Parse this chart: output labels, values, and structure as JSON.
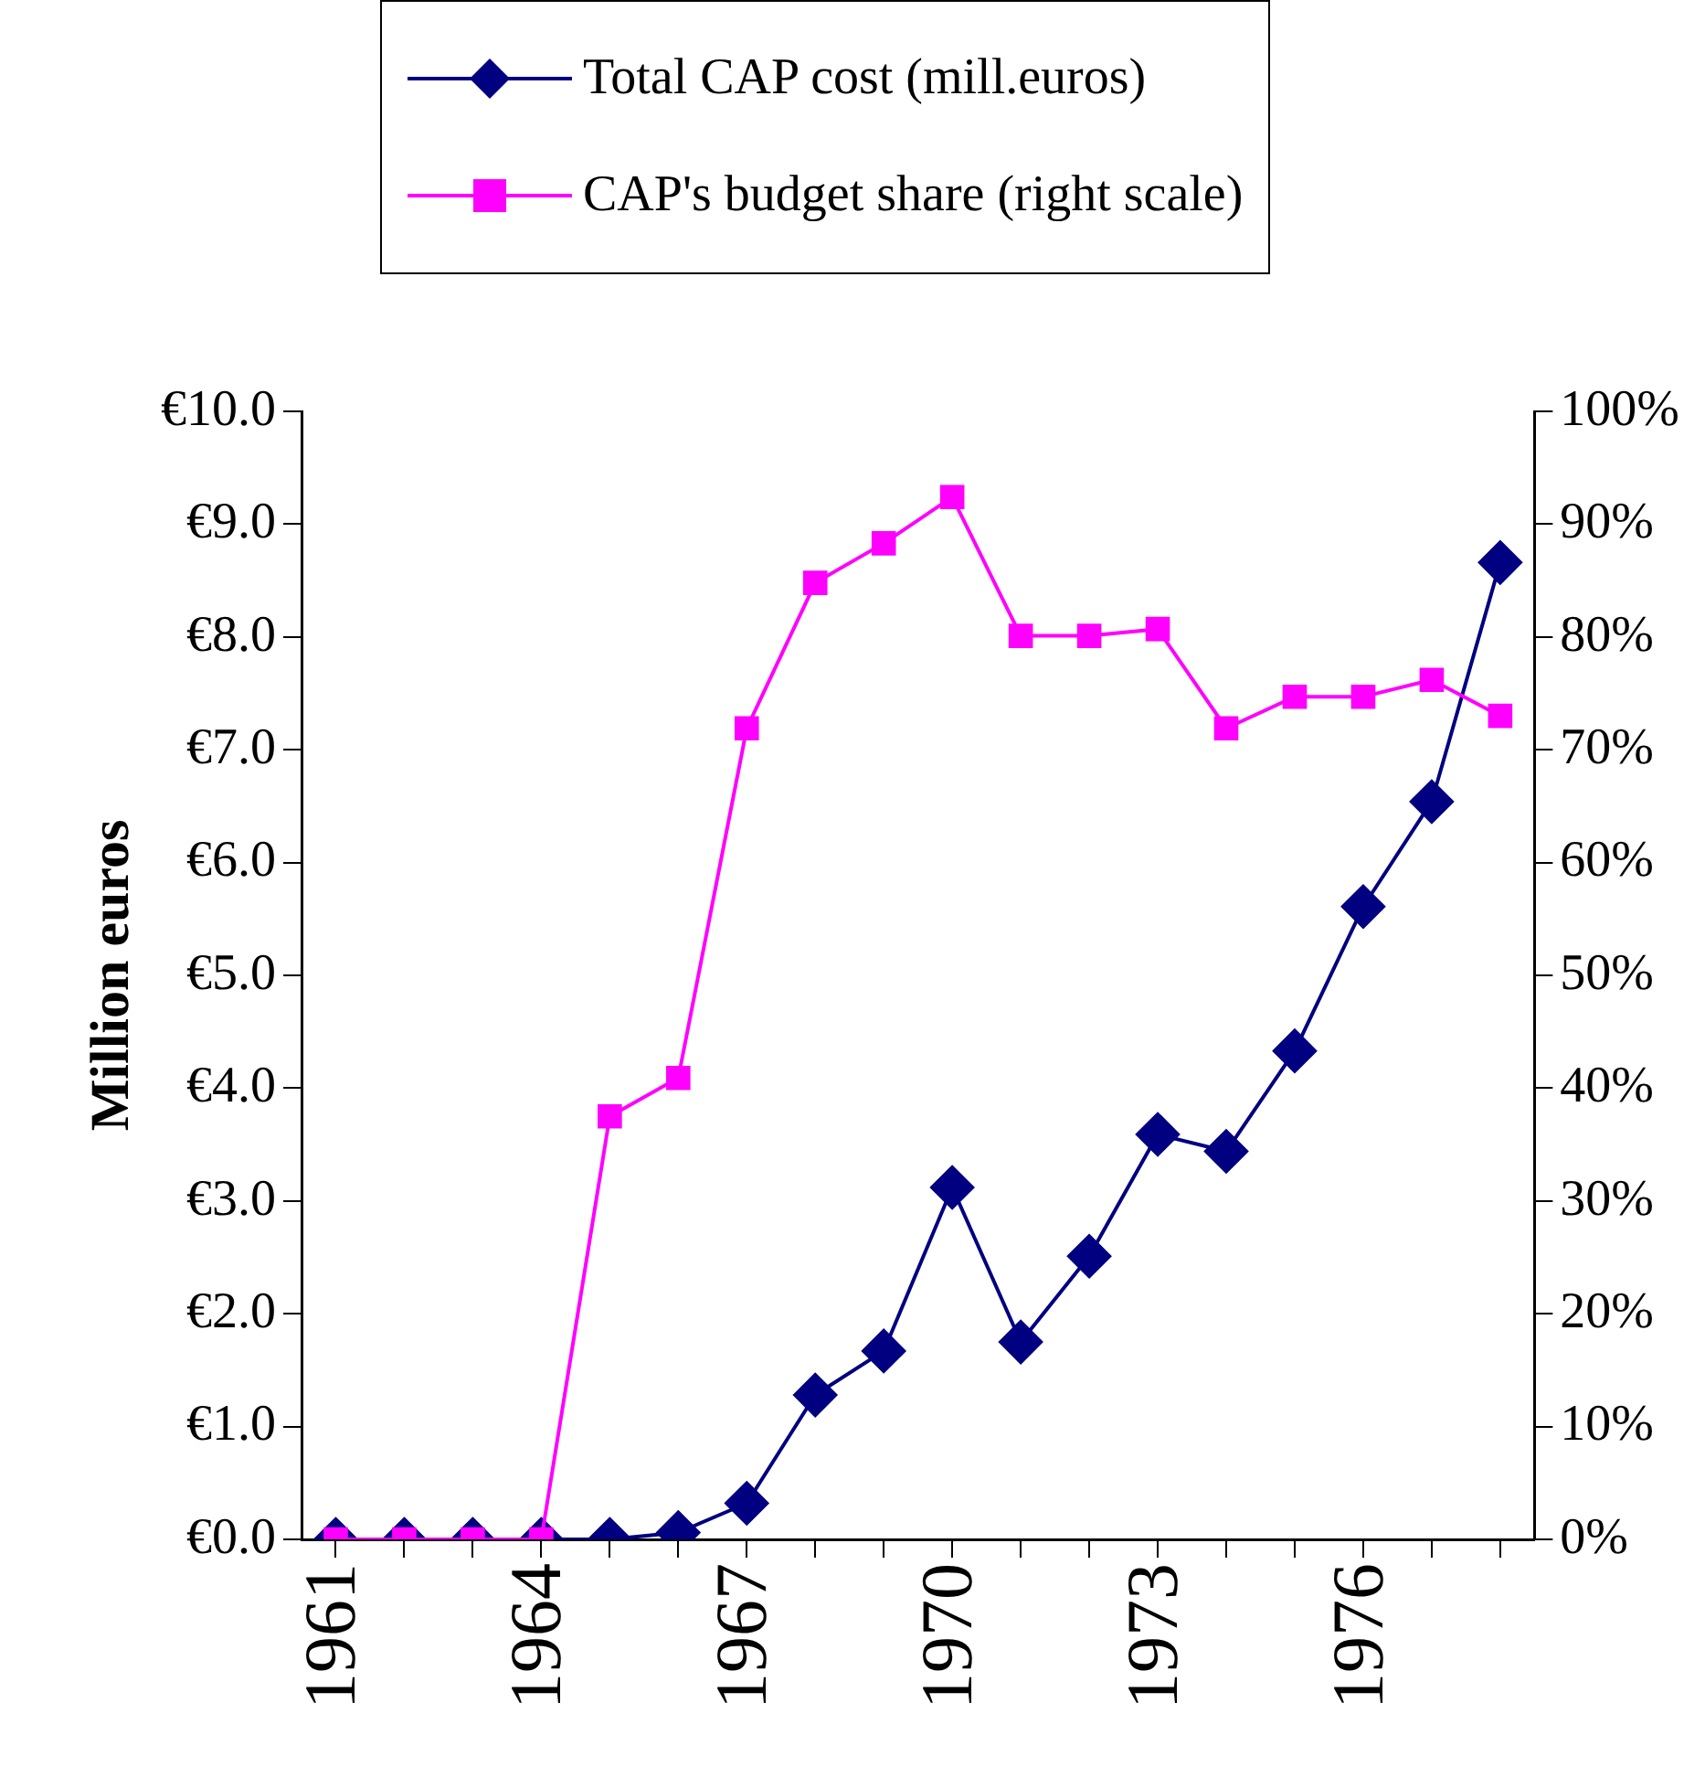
{
  "chart_data": {
    "type": "line",
    "ylabel": "Million euros",
    "legend": "top",
    "categories": [
      "1961",
      null,
      null,
      "1964",
      null,
      null,
      "1967",
      null,
      null,
      "1970",
      null,
      null,
      "1973",
      null,
      null,
      "1976",
      null,
      null
    ],
    "series": [
      {
        "name": "Total CAP cost (mill.euros)",
        "color": "#000080",
        "marker": "diamond",
        "values": [
          0,
          0,
          0,
          0,
          0,
          0.06,
          0.32,
          1.28,
          1.67,
          3.12,
          1.75,
          2.51,
          3.59,
          3.44,
          4.33,
          5.61,
          6.54,
          8.66
        ]
      },
      {
        "name": "CAP's budget share (right scale)",
        "color": "#ff00ff",
        "marker": "square",
        "axis": "y2",
        "values": [
          0,
          0,
          0,
          0,
          37.5,
          40.9,
          71.9,
          84.8,
          88.3,
          92.4,
          80.1,
          80.1,
          80.7,
          71.9,
          74.7,
          74.7,
          76.2,
          73.0
        ]
      }
    ],
    "ylim": [
      0,
      10
    ],
    "yticks": [
      {
        "value": 0,
        "label": "€0.0"
      },
      {
        "value": 1,
        "label": "€1.0"
      },
      {
        "value": 2,
        "label": "€2.0"
      },
      {
        "value": 3,
        "label": "€3.0"
      },
      {
        "value": 4,
        "label": "€4.0"
      },
      {
        "value": 5,
        "label": "€5.0"
      },
      {
        "value": 6,
        "label": "€6.0"
      },
      {
        "value": 7,
        "label": "€7.0"
      },
      {
        "value": 8,
        "label": "€8.0"
      },
      {
        "value": 9,
        "label": "€9.0"
      },
      {
        "value": 10,
        "label": "€10.0"
      }
    ],
    "y2lim": [
      0,
      100
    ],
    "y2ticks": [
      {
        "value": 0,
        "label": "0%"
      },
      {
        "value": 10,
        "label": "10%"
      },
      {
        "value": 20,
        "label": "20%"
      },
      {
        "value": 30,
        "label": "30%"
      },
      {
        "value": 40,
        "label": "40%"
      },
      {
        "value": 50,
        "label": "50%"
      },
      {
        "value": 60,
        "label": "60%"
      },
      {
        "value": 70,
        "label": "70%"
      },
      {
        "value": 80,
        "label": "80%"
      },
      {
        "value": 90,
        "label": "90%"
      },
      {
        "value": 100,
        "label": "100%"
      }
    ]
  }
}
